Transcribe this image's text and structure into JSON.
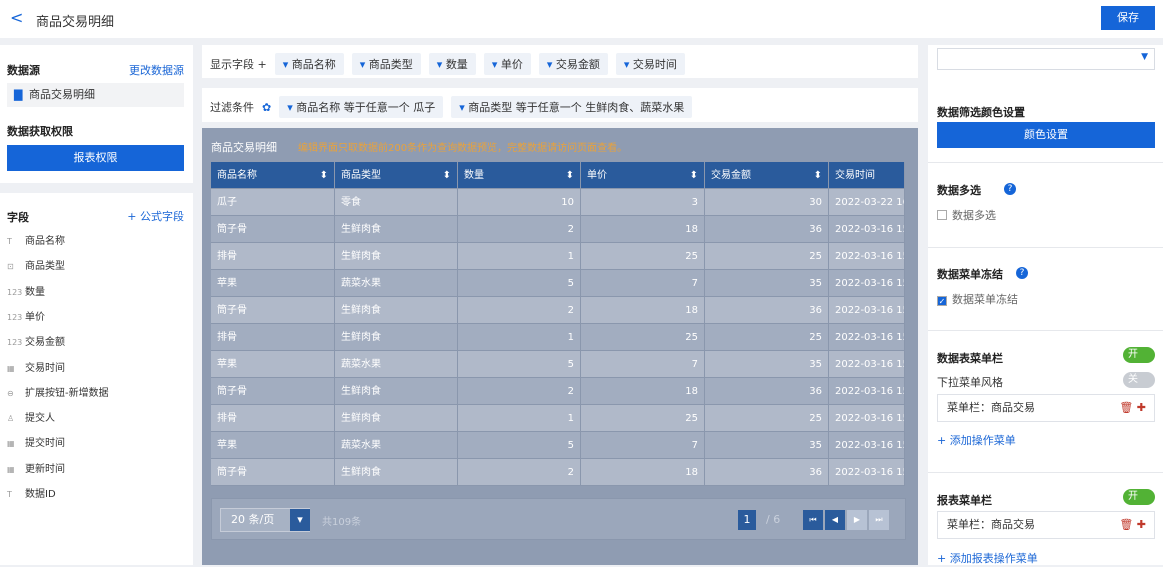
{
  "header": {
    "back": "<",
    "title": "商品交易明细",
    "save": "保存"
  },
  "left": {
    "source_title": "数据源",
    "change_source": "更改数据源",
    "source_item": "商品交易明细",
    "permission_title": "数据获取权限",
    "permission_button": "报表权限",
    "fields_title": "字段",
    "add_formula": "+ 公式字段",
    "fields": [
      {
        "icon": "T",
        "name": "商品名称"
      },
      {
        "icon": "⊡",
        "name": "商品类型"
      },
      {
        "icon": "123",
        "name": "数量"
      },
      {
        "icon": "123",
        "name": "单价"
      },
      {
        "icon": "123",
        "name": "交易金额"
      },
      {
        "icon": "▦",
        "name": "交易时间"
      },
      {
        "icon": "⊖",
        "name": "扩展按钮-新增数据"
      },
      {
        "icon": "♙",
        "name": "提交人"
      },
      {
        "icon": "▦",
        "name": "提交时间"
      },
      {
        "icon": "▦",
        "name": "更新时间"
      },
      {
        "icon": "T",
        "name": "数据ID"
      }
    ]
  },
  "middle": {
    "display_label": "显示字段 +",
    "display_fields": [
      "商品名称",
      "商品类型",
      "数量",
      "单价",
      "交易金额",
      "交易时间"
    ],
    "filter_label": "过滤条件",
    "filters": [
      "商品名称 等于任意一个 瓜子",
      "商品类型 等于任意一个 生鲜肉食、蔬菜水果"
    ]
  },
  "preview": {
    "title": "商品交易明细",
    "notice": "编辑界面只取数据前200条作为查询数据预览，完整数据请访问页面查看。",
    "columns": [
      "商品名称",
      "商品类型",
      "数量",
      "单价",
      "交易金额",
      "交易时间"
    ],
    "rows": [
      [
        "瓜子",
        "零食",
        10,
        3,
        30,
        "2022-03-22 16:"
      ],
      [
        "筒子骨",
        "生鲜肉食",
        2,
        18,
        36,
        "2022-03-16 15:"
      ],
      [
        "排骨",
        "生鲜肉食",
        1,
        25,
        25,
        "2022-03-16 15:"
      ],
      [
        "苹果",
        "蔬菜水果",
        5,
        7,
        35,
        "2022-03-16 15:"
      ],
      [
        "筒子骨",
        "生鲜肉食",
        2,
        18,
        36,
        "2022-03-16 15:"
      ],
      [
        "排骨",
        "生鲜肉食",
        1,
        25,
        25,
        "2022-03-16 15:"
      ],
      [
        "苹果",
        "蔬菜水果",
        5,
        7,
        35,
        "2022-03-16 15:"
      ],
      [
        "筒子骨",
        "生鲜肉食",
        2,
        18,
        36,
        "2022-03-16 15:"
      ],
      [
        "排骨",
        "生鲜肉食",
        1,
        25,
        25,
        "2022-03-16 15:"
      ],
      [
        "苹果",
        "蔬菜水果",
        5,
        7,
        35,
        "2022-03-16 15:"
      ],
      [
        "筒子骨",
        "生鲜肉食",
        2,
        18,
        36,
        "2022-03-16 15:"
      ]
    ],
    "pager": {
      "page_size": "20 条/页",
      "total": "共109条",
      "page": "1",
      "pages": "/ 6"
    }
  },
  "right": {
    "color_title": "数据筛选颜色设置",
    "color_button": "颜色设置",
    "multi_title": "数据多选",
    "multi_check": "数据多选",
    "freeze_title": "数据菜单冻结",
    "freeze_check": "数据菜单冻结",
    "table_menu_title": "数据表菜单栏",
    "table_menu_toggle": "开",
    "dropdown_style": "下拉菜单风格",
    "dropdown_toggle": "关",
    "table_menu_item": "菜单栏：商品交易",
    "add_menu": "+ 添加操作菜单",
    "report_menu_title": "报表菜单栏",
    "report_menu_toggle": "开",
    "report_menu_item": "菜单栏：商品交易",
    "add_report_menu": "+ 添加报表操作菜单"
  }
}
